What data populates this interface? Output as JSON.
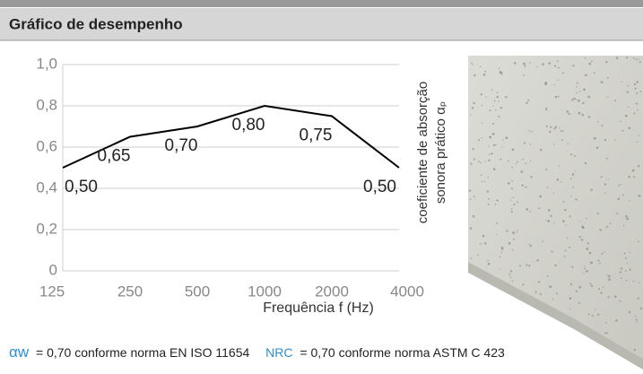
{
  "chart_data": {
    "type": "line",
    "title": "Gráfico de desempenho",
    "x_label": "Frequência f (Hz)",
    "y_label_lines": [
      "coeficiente de absorção",
      "sonora prático αₚ"
    ],
    "categories": [
      "125",
      "250",
      "500",
      "1000",
      "2000",
      "4000"
    ],
    "values": [
      0.5,
      0.65,
      0.7,
      0.8,
      0.75,
      0.5
    ],
    "value_labels": [
      "0,50",
      "0,65",
      "0,70",
      "0,80",
      "0,75",
      "0,50"
    ],
    "color": "#000000",
    "ylim": [
      0,
      1
    ],
    "yticks": [
      0,
      {
        "value": 0.2,
        "label": "0,2"
      },
      {
        "value": 0.4,
        "label": "0,4"
      },
      {
        "value": 0.6,
        "label": "0,6"
      },
      {
        "value": 0.8,
        "label": "0,8"
      },
      {
        "value": 1,
        "label": "1,0"
      }
    ],
    "grid": true
  },
  "footer": {
    "alpha": "αw",
    "text1": "= 0,70 conforme norma EN ISO 11654",
    "nrc": "NRC",
    "text2": "= 0,70 conforme norma ASTM C 423"
  }
}
